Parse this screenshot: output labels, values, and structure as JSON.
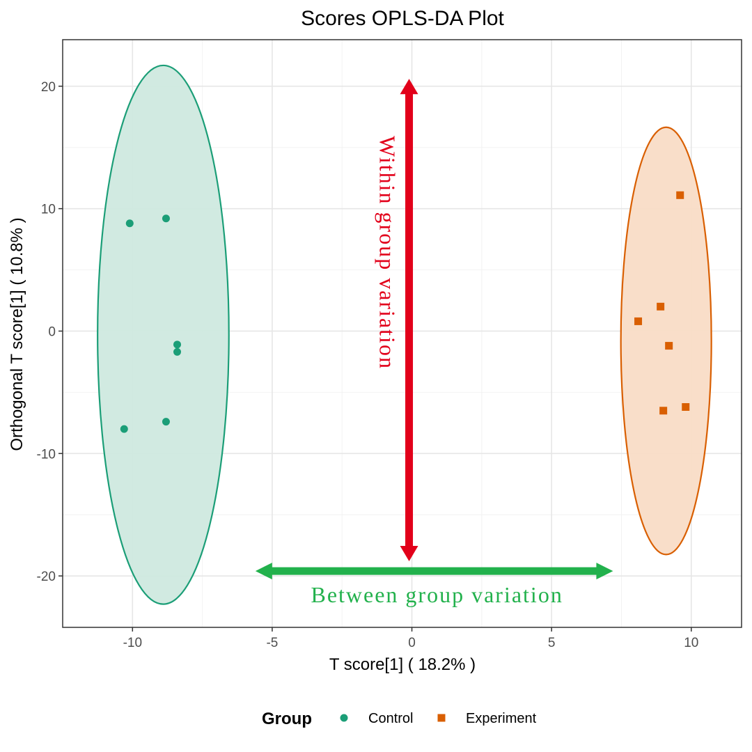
{
  "chart_data": {
    "type": "scatter",
    "title": "Scores OPLS-DA Plot",
    "xlabel": "T score[1] ( 18.2% )",
    "ylabel": "Orthogonal T score[1] ( 10.8% )",
    "xlim": [
      -12.5,
      11.8
    ],
    "ylim": [
      -24.2,
      23.8
    ],
    "x_ticks": [
      -10,
      -5,
      0,
      5,
      10
    ],
    "y_ticks": [
      -20,
      -10,
      0,
      10,
      20
    ],
    "x_tick_labels": [
      "-10",
      "-5",
      "0",
      "5",
      "10"
    ],
    "y_tick_labels": [
      "-20",
      "-10",
      "0",
      "10",
      "20"
    ],
    "grid": true,
    "legend": {
      "title": "Group",
      "position": "bottom"
    },
    "series": [
      {
        "name": "Control",
        "marker": "circle",
        "color": "#1b9e77",
        "fill": "#cfe9df",
        "points": [
          {
            "x": -10.1,
            "y": 8.8
          },
          {
            "x": -8.8,
            "y": 9.2
          },
          {
            "x": -8.4,
            "y": -1.1
          },
          {
            "x": -8.4,
            "y": -1.7
          },
          {
            "x": -8.8,
            "y": -7.4
          },
          {
            "x": -10.3,
            "y": -8.0
          }
        ],
        "ellipse": {
          "cx": -8.9,
          "cy": -0.3,
          "rx": 2.35,
          "ry": 22.0
        }
      },
      {
        "name": "Experiment",
        "marker": "square",
        "color": "#d95f02",
        "fill": "#f9dcc6",
        "points": [
          {
            "x": 9.6,
            "y": 11.1
          },
          {
            "x": 8.9,
            "y": 2.0
          },
          {
            "x": 8.1,
            "y": 0.8
          },
          {
            "x": 9.2,
            "y": -1.2
          },
          {
            "x": 9.0,
            "y": -6.5
          },
          {
            "x": 9.8,
            "y": -6.2
          }
        ],
        "ellipse": {
          "cx": 9.1,
          "cy": -0.8,
          "rx": 1.62,
          "ry": 17.45
        }
      }
    ],
    "annotations": [
      {
        "id": "within",
        "text": "Within group variation",
        "color": "#e2001a",
        "arrow": {
          "x1": -0.1,
          "y1": 20.6,
          "x2": -0.1,
          "y2": -18.8
        }
      },
      {
        "id": "between",
        "text": "Between group variation",
        "color": "#22b14c",
        "arrow": {
          "x1": -5.6,
          "y1": -19.6,
          "x2": 7.2,
          "y2": -19.6
        }
      }
    ]
  }
}
